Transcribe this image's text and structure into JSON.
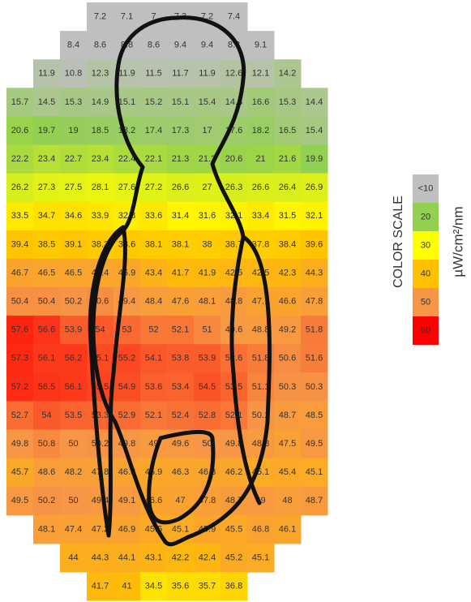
{
  "chart_data": {
    "type": "heatmap",
    "rows": [
      [
        null,
        null,
        null,
        7.2,
        7.1,
        7,
        7.3,
        7.2,
        7.4,
        null,
        null,
        null
      ],
      [
        null,
        null,
        8.4,
        8.6,
        8.8,
        8.6,
        9.4,
        9.4,
        8.8,
        9.1,
        null,
        null
      ],
      [
        null,
        11.9,
        10.8,
        12.3,
        11.9,
        11.5,
        11.7,
        11.9,
        12.6,
        12.1,
        14.2,
        null
      ],
      [
        15.7,
        14.5,
        15.3,
        14.9,
        15.1,
        15.2,
        15.1,
        15.4,
        14.8,
        16.6,
        15.3,
        14.4
      ],
      [
        20.6,
        19.7,
        19,
        18.5,
        18.2,
        17.4,
        17.3,
        17,
        17.6,
        18.2,
        16.5,
        15.4
      ],
      [
        22.2,
        23.4,
        22.7,
        23.4,
        22.4,
        22.1,
        21.3,
        21.2,
        20.6,
        21,
        21.6,
        19.9
      ],
      [
        26.2,
        27.3,
        27.5,
        28.1,
        27.6,
        27.2,
        26.6,
        27,
        26.3,
        26.6,
        26.4,
        26.9
      ],
      [
        33.5,
        34.7,
        34.6,
        33.9,
        32.8,
        33.6,
        31.4,
        31.6,
        32.1,
        33.4,
        31.5,
        32.1
      ],
      [
        39.4,
        38.5,
        39.1,
        38.3,
        38.6,
        38.1,
        38.1,
        38,
        38.7,
        37.8,
        38.4,
        39.6
      ],
      [
        46.7,
        46.5,
        46.5,
        46.4,
        45.9,
        43.4,
        41.7,
        41.9,
        42.5,
        42.5,
        42.3,
        44.3
      ],
      [
        50.4,
        50.4,
        50.2,
        50.6,
        49.4,
        48.4,
        47.6,
        48.1,
        48.8,
        47.1,
        46.6,
        47.8
      ],
      [
        57.6,
        56.6,
        53.9,
        54,
        53,
        52,
        52.1,
        51,
        49.6,
        48.8,
        49.2,
        51.8
      ],
      [
        57.3,
        56.1,
        56.2,
        55.1,
        55.2,
        54.1,
        53.8,
        53.9,
        52.6,
        51.8,
        50.6,
        51.6
      ],
      [
        57.2,
        56.5,
        56.1,
        55.5,
        54.9,
        53.6,
        53.4,
        54.5,
        53.5,
        51.1,
        50.3,
        50.3
      ],
      [
        52.7,
        54,
        53.5,
        53.3,
        52.9,
        52.1,
        52.4,
        52.8,
        52.1,
        50.1,
        48.7,
        48.5
      ],
      [
        49.8,
        50.8,
        50,
        50.2,
        49.8,
        49,
        49.6,
        50,
        49.8,
        48.8,
        47.5,
        49.5
      ],
      [
        45.7,
        48.6,
        48.2,
        47.8,
        46.8,
        45.9,
        46.3,
        46.3,
        46.2,
        45.1,
        45.4,
        45.1
      ],
      [
        49.5,
        50.2,
        50,
        49.4,
        49.1,
        46.6,
        47,
        47.8,
        48.7,
        49,
        48,
        48.7
      ],
      [
        null,
        48.1,
        47.4,
        47.2,
        46.9,
        45.5,
        45.1,
        45.9,
        45.5,
        46.8,
        46.1,
        null
      ],
      [
        null,
        null,
        44,
        44.3,
        44.1,
        43.1,
        42.2,
        42.4,
        45.2,
        45.1,
        null,
        null
      ],
      [
        null,
        null,
        null,
        41.7,
        41,
        34.5,
        35.6,
        35.7,
        36.8,
        null,
        null,
        null
      ]
    ],
    "color_scale": [
      {
        "value": 10,
        "label": "<10",
        "color": "#bfbfbf"
      },
      {
        "value": 20,
        "color": "#92d050"
      },
      {
        "value": 30,
        "color": "#ffff00"
      },
      {
        "value": 40,
        "color": "#ffc000"
      },
      {
        "value": 50,
        "color": "#f79646"
      },
      {
        "value": 60,
        "color": "#ff0000"
      }
    ],
    "legend_title": "COLOR SCALE",
    "unit": "µW/cm²/nm"
  }
}
